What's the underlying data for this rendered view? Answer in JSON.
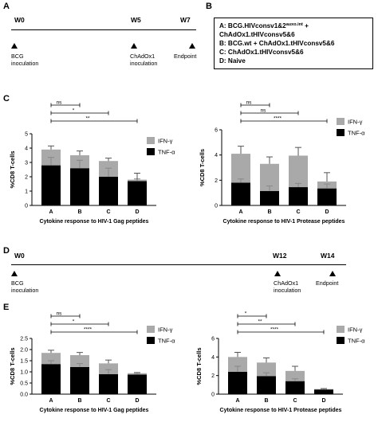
{
  "panels": {
    "a": {
      "letter": "A",
      "w0": "W0",
      "w5": "W5",
      "w7": "W7",
      "note1_line1": "BCG",
      "note1_line2": "inoculation",
      "note2_line1": "ChAdOx1",
      "note2_line2": "inoculation",
      "note3": "Endpoint"
    },
    "b": {
      "letter": "B",
      "line1_main": "A: BCG.HIVconsv1&2",
      "line1_sup": "auxo.int",
      "line1_tail": " +",
      "line2": "ChAdOx1.tHIVconsv5&6",
      "line3": "B: BCG.wt + ChAdOx1.tHIVconsv5&6",
      "line4": "C: ChAdOx1.tHIVconsv5&6",
      "line5": "D: Naive"
    },
    "c": {
      "letter": "C"
    },
    "d": {
      "letter": "D",
      "w0": "W0",
      "w12": "W12",
      "w14": "W14",
      "note1_line1": "BCG",
      "note1_line2": "inoculation",
      "note2_line1": "ChAdOx1",
      "note2_line2": "inoculation",
      "note3": "Endpoint"
    },
    "e": {
      "letter": "E"
    }
  },
  "colors": {
    "ifn": "#a9a9a9",
    "tnf": "#000000"
  },
  "chart_data": [
    {
      "panel": "C",
      "type": "bar",
      "stacked": true,
      "categories": [
        "A",
        "B",
        "C",
        "D"
      ],
      "series": [
        {
          "name": "TNF-α",
          "values": [
            2.8,
            2.6,
            2.0,
            1.7
          ],
          "errors": [
            0.55,
            0.55,
            0.6,
            0.15
          ]
        },
        {
          "name": "IFN-γ",
          "values": [
            1.1,
            0.9,
            1.1,
            0.1
          ],
          "errors": [
            0.25,
            0.3,
            0.2,
            0.45
          ]
        }
      ],
      "ylabel": "%CD8 T-cells",
      "xlabel": "Cytokine response to HIV-1 Gag peptides",
      "ylim": [
        0,
        5
      ],
      "yticks": [
        "0",
        "1",
        "2",
        "3",
        "4",
        "5"
      ],
      "significance": [
        {
          "from": "A",
          "to": "B",
          "label": "ns"
        },
        {
          "from": "A",
          "to": "C",
          "label": "*"
        },
        {
          "from": "A",
          "to": "D",
          "label": "**"
        }
      ]
    },
    {
      "panel": "C",
      "type": "bar",
      "stacked": true,
      "categories": [
        "A",
        "B",
        "C",
        "D"
      ],
      "series": [
        {
          "name": "TNF-α",
          "values": [
            1.8,
            1.15,
            1.45,
            1.35
          ],
          "errors": [
            0.3,
            0.4,
            0.3,
            0.35
          ]
        },
        {
          "name": "IFN-γ",
          "values": [
            2.3,
            2.15,
            2.5,
            0.55
          ],
          "errors": [
            0.6,
            0.55,
            0.65,
            0.7
          ]
        }
      ],
      "ylabel": "%CD8 T-cells",
      "xlabel": "Cytokine response to HIV-1 Protease peptides",
      "ylim": [
        0,
        6
      ],
      "yticks": [
        "0",
        "2",
        "4",
        "6"
      ],
      "significance": [
        {
          "from": "A",
          "to": "B",
          "label": "ns"
        },
        {
          "from": "A",
          "to": "C",
          "label": "ns"
        },
        {
          "from": "A",
          "to": "D",
          "label": "****"
        }
      ]
    },
    {
      "panel": "E",
      "type": "bar",
      "stacked": true,
      "categories": [
        "A",
        "B",
        "C",
        "D"
      ],
      "series": [
        {
          "name": "TNF-α",
          "values": [
            1.35,
            1.22,
            0.9,
            0.88
          ],
          "errors": [
            0.15,
            0.15,
            0.2,
            0.03
          ]
        },
        {
          "name": "IFN-γ",
          "values": [
            0.5,
            0.53,
            0.48,
            0.06
          ],
          "errors": [
            0.12,
            0.12,
            0.15,
            0.03
          ]
        }
      ],
      "ylabel": "%CD8 T-cells",
      "xlabel": "Cytokine response to HIV-1 Gag peptides",
      "ylim": [
        0,
        2.5
      ],
      "yticks": [
        "0.0",
        "0.5",
        "1.0",
        "1.5",
        "2.0",
        "2.5"
      ],
      "significance": [
        {
          "from": "A",
          "to": "B",
          "label": "ns"
        },
        {
          "from": "A",
          "to": "C",
          "label": "*"
        },
        {
          "from": "A",
          "to": "D",
          "label": "****"
        }
      ]
    },
    {
      "panel": "E",
      "type": "bar",
      "stacked": true,
      "categories": [
        "A",
        "B",
        "C",
        "D"
      ],
      "series": [
        {
          "name": "TNF-α",
          "values": [
            2.4,
            1.95,
            1.4,
            0.5
          ],
          "errors": [
            0.6,
            0.35,
            0.25,
            0.1
          ]
        },
        {
          "name": "IFN-γ",
          "values": [
            1.6,
            1.45,
            1.1,
            0.05
          ],
          "errors": [
            0.5,
            0.5,
            0.5,
            0.05
          ]
        }
      ],
      "ylabel": "%CD8 T-cells",
      "xlabel": "Cytokine response to HIV-1 Protease peptides",
      "ylim": [
        0,
        6
      ],
      "yticks": [
        "0",
        "2",
        "4",
        "6"
      ],
      "significance": [
        {
          "from": "A",
          "to": "B",
          "label": "*"
        },
        {
          "from": "A",
          "to": "C",
          "label": "**"
        },
        {
          "from": "A",
          "to": "D",
          "label": "****"
        }
      ]
    }
  ]
}
